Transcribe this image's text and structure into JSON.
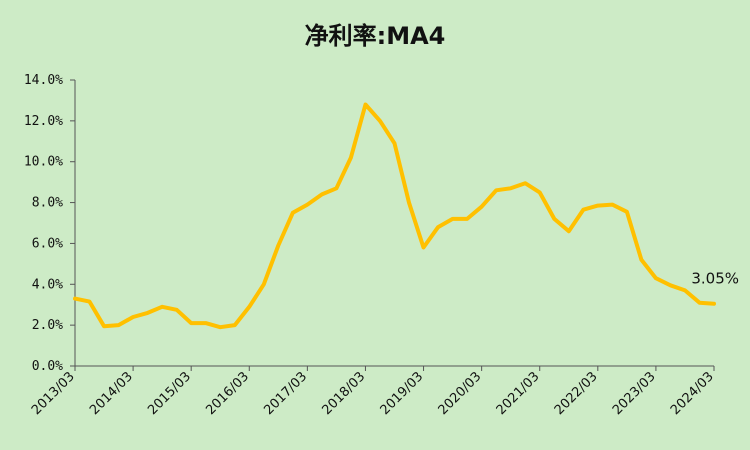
{
  "chart_data": {
    "type": "line",
    "title": "净利率:MA4",
    "xlabel": "",
    "ylabel": "",
    "ylim": [
      0,
      14
    ],
    "y_ticks": [
      "0.0%",
      "2.0%",
      "4.0%",
      "6.0%",
      "8.0%",
      "10.0%",
      "12.0%",
      "14.0%"
    ],
    "x_tick_labels": [
      "2013/03",
      "2014/03",
      "2015/03",
      "2016/03",
      "2017/03",
      "2018/03",
      "2019/03",
      "2020/03",
      "2021/03",
      "2022/03",
      "2023/03",
      "2024/03"
    ],
    "x": [
      "2013/03",
      "2013/06",
      "2013/09",
      "2013/12",
      "2014/03",
      "2014/06",
      "2014/09",
      "2014/12",
      "2015/03",
      "2015/06",
      "2015/09",
      "2015/12",
      "2016/03",
      "2016/06",
      "2016/09",
      "2016/12",
      "2017/03",
      "2017/06",
      "2017/09",
      "2017/12",
      "2018/03",
      "2018/06",
      "2018/09",
      "2018/12",
      "2019/03",
      "2019/06",
      "2019/09",
      "2019/12",
      "2020/03",
      "2020/06",
      "2020/09",
      "2020/12",
      "2021/03",
      "2021/06",
      "2021/09",
      "2021/12",
      "2022/03",
      "2022/06",
      "2022/09",
      "2022/12",
      "2023/03",
      "2023/06",
      "2023/09",
      "2023/12",
      "2024/03"
    ],
    "series": [
      {
        "name": "",
        "color": "#ffc000",
        "values": [
          3.3,
          3.15,
          1.95,
          2.0,
          2.4,
          2.6,
          2.9,
          2.75,
          2.1,
          2.1,
          1.9,
          2.0,
          2.9,
          4.0,
          5.9,
          7.5,
          7.9,
          8.4,
          8.7,
          10.2,
          12.8,
          12.0,
          10.9,
          8.0,
          5.8,
          6.8,
          7.2,
          7.2,
          7.8,
          8.6,
          8.7,
          8.95,
          8.5,
          7.2,
          6.6,
          7.65,
          7.85,
          7.9,
          7.55,
          5.2,
          4.3,
          3.95,
          3.7,
          3.1,
          3.05
        ]
      }
    ],
    "annotations": [
      {
        "text": "3.05%",
        "x": "2024/03",
        "y": 3.05
      }
    ],
    "grid": false,
    "legend": "none"
  }
}
